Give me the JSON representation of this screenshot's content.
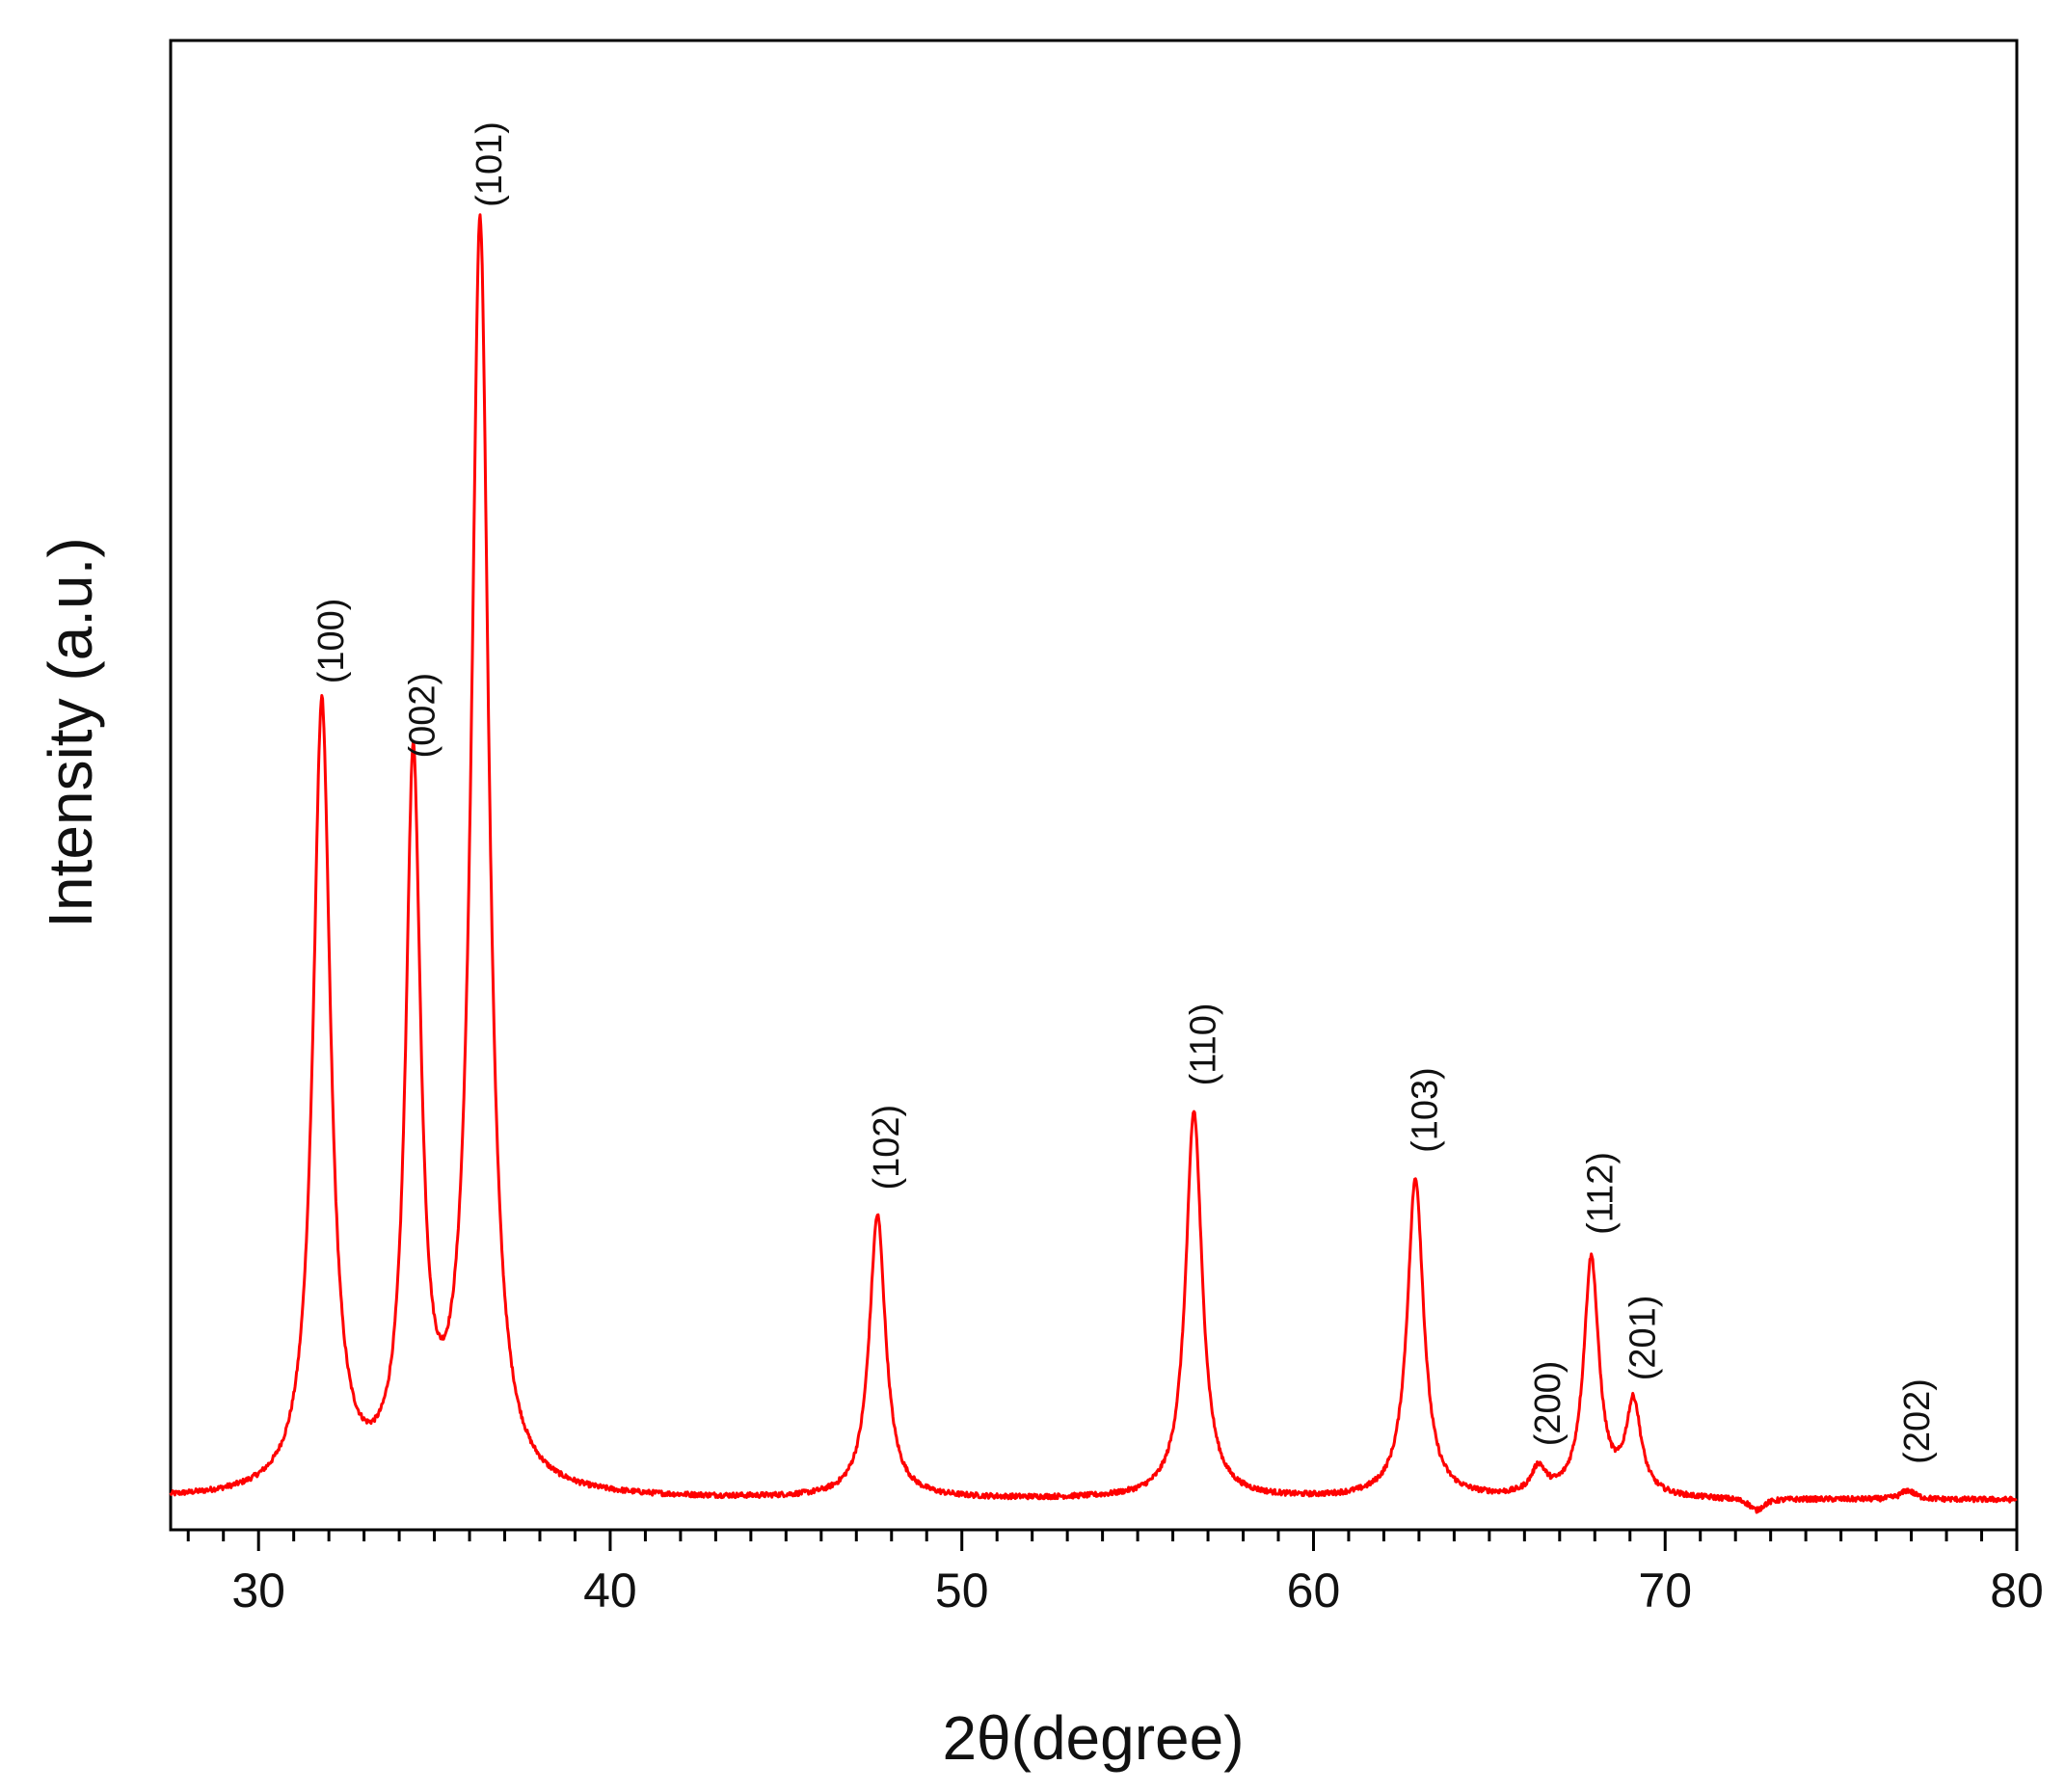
{
  "chart_data": {
    "type": "line",
    "title": "",
    "xlabel": "2θ(degree)",
    "ylabel": "Intensity (a.u.)",
    "xlim": [
      27.5,
      80
    ],
    "ylim": [
      0,
      100
    ],
    "x_ticks": [
      30,
      40,
      50,
      60,
      70,
      80
    ],
    "x_tick_labels": [
      "30",
      "40",
      "50",
      "60",
      "70",
      "80"
    ],
    "x_minor_tick_step": 1,
    "y_ticks_shown": false,
    "grid": false,
    "legend": "none",
    "line_color": "#ff0000",
    "baseline": 2,
    "series": [
      {
        "peaks": [
          {
            "x": 31.8,
            "y": 55,
            "width": 0.3,
            "label": "(100)"
          },
          {
            "x": 34.4,
            "y": 50,
            "width": 0.26,
            "label": "(002)"
          },
          {
            "x": 36.3,
            "y": 87,
            "width": 0.3,
            "label": "(101)"
          },
          {
            "x": 47.6,
            "y": 21,
            "width": 0.28,
            "label": "(102)"
          },
          {
            "x": 56.6,
            "y": 28,
            "width": 0.28,
            "label": "(110)"
          },
          {
            "x": 62.9,
            "y": 23.5,
            "width": 0.28,
            "label": "(103)"
          },
          {
            "x": 66.4,
            "y": 3.8,
            "width": 0.25,
            "label": "(200)"
          },
          {
            "x": 67.9,
            "y": 18,
            "width": 0.26,
            "label": "(112)"
          },
          {
            "x": 69.1,
            "y": 8.2,
            "width": 0.26,
            "label": "(201)"
          },
          {
            "x": 72.6,
            "y": 1.2,
            "width": 0.25,
            "label": ""
          },
          {
            "x": 76.9,
            "y": 2.6,
            "width": 0.25,
            "label": "(202)"
          }
        ]
      }
    ]
  }
}
